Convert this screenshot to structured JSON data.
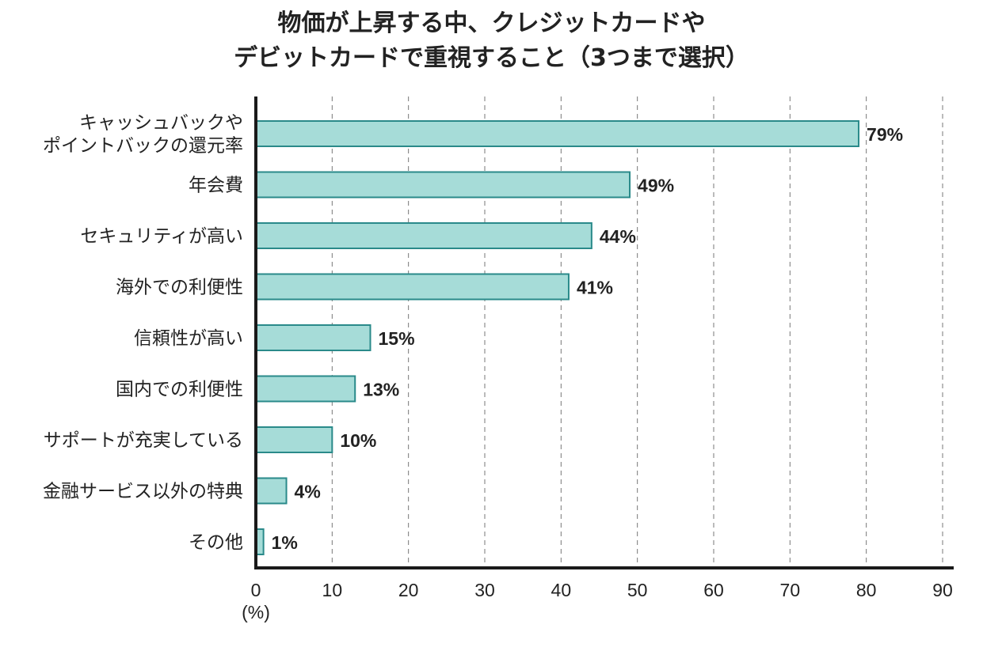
{
  "chart_data": {
    "type": "bar",
    "orientation": "horizontal",
    "title": [
      "物価が上昇する中、クレジットカードや",
      "デビットカードで重視すること（3つまで選択）"
    ],
    "categories": [
      [
        "キャッシュバックや",
        "ポイントバックの還元率"
      ],
      [
        "年会費"
      ],
      [
        "セキュリティが高い"
      ],
      [
        "海外での利便性"
      ],
      [
        "信頼性が高い"
      ],
      [
        "国内での利便性"
      ],
      [
        "サポートが充実している"
      ],
      [
        "金融サービス以外の特典"
      ],
      [
        "その他"
      ]
    ],
    "values": [
      79,
      49,
      44,
      41,
      15,
      13,
      10,
      4,
      1
    ],
    "value_labels": [
      "79%",
      "49%",
      "44%",
      "41%",
      "15%",
      "13%",
      "10%",
      "4%",
      "1%"
    ],
    "xlim": [
      0,
      90
    ],
    "xticks": [
      "0",
      "10",
      "20",
      "30",
      "40",
      "50",
      "60",
      "70",
      "80",
      "90"
    ],
    "xlabel": "(%)",
    "grid": "vertical dashed",
    "colors": {
      "bar_fill": "#a6dcd8",
      "bar_stroke": "#2a8a8a",
      "axis": "#1a1a1a",
      "grid": "#777777"
    }
  }
}
